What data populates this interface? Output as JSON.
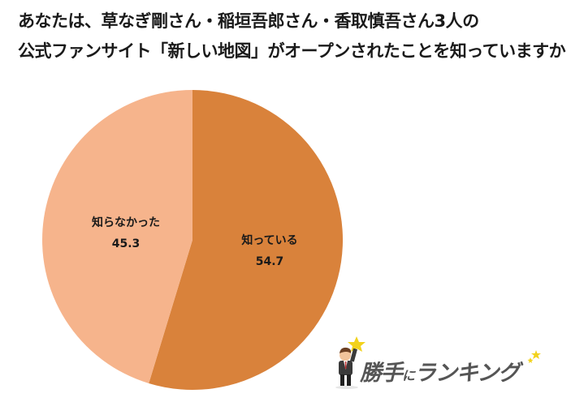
{
  "title": {
    "line1": "あなたは、草なぎ剛さん・稲垣吾郎さん・香取慎吾さん3人の",
    "line2": "公式ファンサイト「新しい地図」がオープンされたことを知っていますか"
  },
  "chart_data": {
    "type": "pie",
    "title": "あなたは、草なぎ剛さん・稲垣吾郎さん・香取慎吾さん3人の公式ファンサイト「新しい地図」がオープンされたことを知っていますか",
    "categories": [
      "知っている",
      "知らなかった"
    ],
    "values": [
      54.7,
      45.3
    ],
    "unit": "%",
    "colors": [
      "#d9823b",
      "#f6b48c"
    ],
    "start_angle": "12 o'clock, clockwise",
    "legend": "none (data labels inside slices)"
  },
  "labels": {
    "known": {
      "name": "知っている",
      "value": "54.7"
    },
    "unknown": {
      "name": "知らなかった",
      "value": "45.3"
    }
  },
  "logo": {
    "main": "勝手",
    "particle": "に",
    "rest": "ランキング",
    "star_icon": "star-icon",
    "character_icon": "businessman-icon"
  },
  "colors": {
    "known": "#d9823b",
    "unknown": "#f6b48c",
    "logo_text": "#555555",
    "star": "#f2d21c"
  }
}
